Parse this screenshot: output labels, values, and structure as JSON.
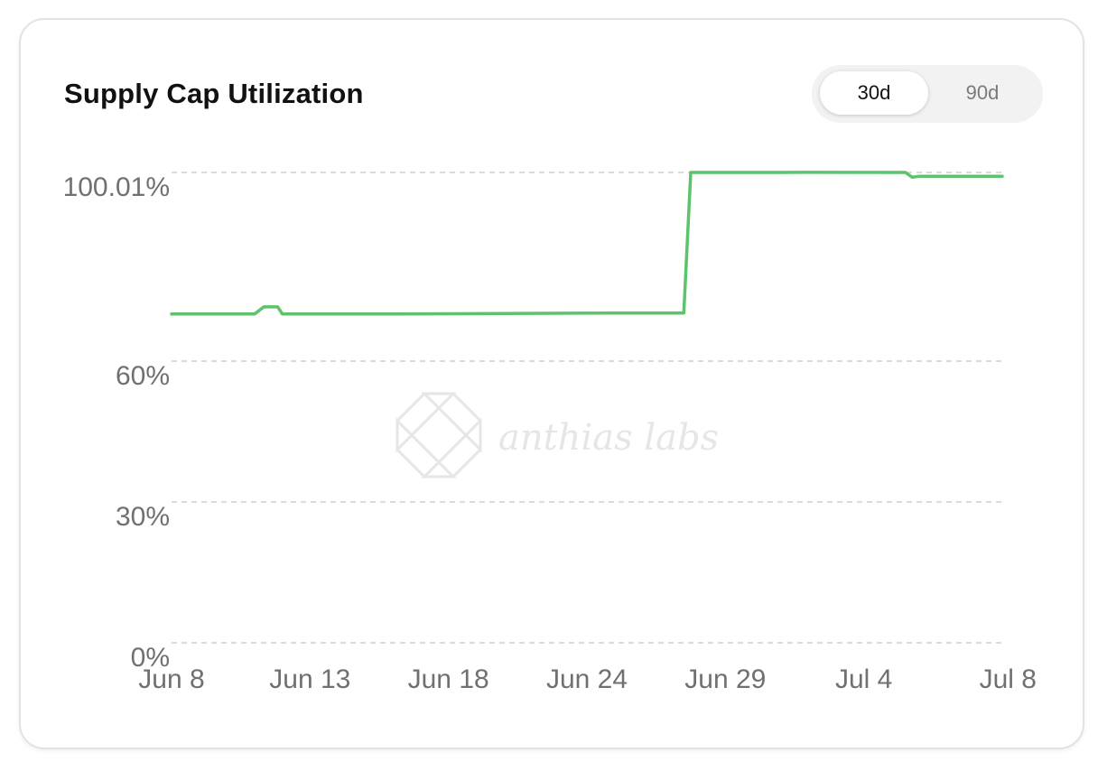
{
  "card": {
    "title": "Supply Cap Utilization"
  },
  "range_toggle": {
    "options": [
      "30d",
      "90d"
    ],
    "selected": "30d"
  },
  "watermark": {
    "text": "anthias labs"
  },
  "colors": {
    "line": "#5cc46b",
    "grid": "#cfcfcf",
    "tick_text": "#707070"
  },
  "chart_data": {
    "type": "line",
    "title": "Supply Cap Utilization",
    "xlabel": "",
    "ylabel": "",
    "x_ticks": [
      "Jun 8",
      "Jun 13",
      "Jun 18",
      "Jun 24",
      "Jun 29",
      "Jul 4",
      "Jul 8"
    ],
    "y_ticks": [
      {
        "value": 0,
        "label": "0%"
      },
      {
        "value": 30,
        "label": "30%"
      },
      {
        "value": 60,
        "label": "60%"
      },
      {
        "value": 100.01,
        "label": "100.01%"
      }
    ],
    "ylim": [
      0,
      100.01
    ],
    "xlim": [
      "2025-06-08",
      "2025-07-08"
    ],
    "grid": true,
    "legend": "none",
    "series": [
      {
        "values": [
          {
            "x": "2025-06-08",
            "y": 70.0
          },
          {
            "x": "2025-06-11",
            "y": 70.0
          },
          {
            "x": "2025-06-11T08:00",
            "y": 71.5
          },
          {
            "x": "2025-06-11T20:00",
            "y": 71.5
          },
          {
            "x": "2025-06-12",
            "y": 70.0
          },
          {
            "x": "2025-06-16",
            "y": 70.0
          },
          {
            "x": "2025-06-20",
            "y": 70.1
          },
          {
            "x": "2025-06-24",
            "y": 70.2
          },
          {
            "x": "2025-06-26T12:00",
            "y": 70.2
          },
          {
            "x": "2025-06-26T18:00",
            "y": 100.01
          },
          {
            "x": "2025-06-30",
            "y": 100.01
          },
          {
            "x": "2025-07-01",
            "y": 100.02
          },
          {
            "x": "2025-07-04T12:00",
            "y": 100.01
          },
          {
            "x": "2025-07-04T18:00",
            "y": 99.0
          },
          {
            "x": "2025-07-05",
            "y": 99.2
          },
          {
            "x": "2025-07-08",
            "y": 99.2
          }
        ]
      }
    ]
  }
}
